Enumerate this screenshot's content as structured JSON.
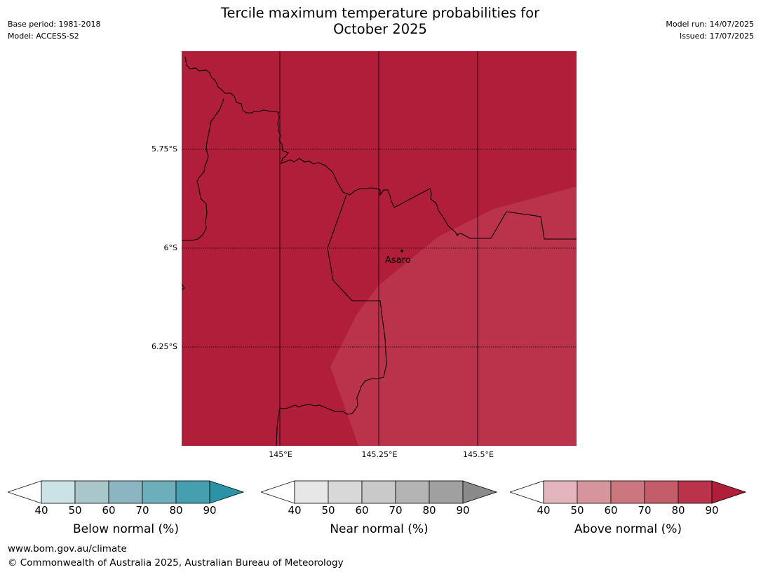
{
  "header": {
    "title_line1": "Tercile maximum temperature probabilities for",
    "title_line2": "October 2025",
    "base_period": "Base period: 1981-2018",
    "model": "Model: ACCESS-S2",
    "model_run": "Model run: 14/07/2025",
    "issued": "Issued: 17/07/2025"
  },
  "map": {
    "lat_labels": [
      "5.75°S",
      "6°S",
      "6.25°S"
    ],
    "lon_labels": [
      "145°E",
      "145.25°E",
      "145.5°E"
    ],
    "place": {
      "name": "Asaro"
    },
    "colors": {
      "category_80_90": "#b01e3a",
      "category_70_80": "#ba334b",
      "boundary": "#000000",
      "gridline": "#000000"
    }
  },
  "legends": [
    {
      "label": "Below normal (%)",
      "ticks": [
        "40",
        "50",
        "60",
        "70",
        "80",
        "90"
      ],
      "colors": [
        "#ffffff",
        "#cbe2e6",
        "#a9c6cb",
        "#8bb5c1",
        "#6daebb",
        "#459faf",
        "#2a94a6"
      ]
    },
    {
      "label": "Near normal (%)",
      "ticks": [
        "40",
        "50",
        "60",
        "70",
        "80",
        "90"
      ],
      "colors": [
        "#ffffff",
        "#e7e7e7",
        "#d8d8d8",
        "#c9c9c9",
        "#b4b4b4",
        "#a0a0a0",
        "#8a8a8a"
      ]
    },
    {
      "label": "Above normal (%)",
      "ticks": [
        "40",
        "50",
        "60",
        "70",
        "80",
        "90"
      ],
      "colors": [
        "#ffffff",
        "#e2b6bc",
        "#d6959d",
        "#cc7780",
        "#c55c6a",
        "#ba334b",
        "#b01e3a"
      ]
    }
  ],
  "footer": {
    "website": "www.bom.gov.au/climate",
    "copyright": "© Commonwealth of Australia 2025, Australian Bureau of Meteorology"
  }
}
